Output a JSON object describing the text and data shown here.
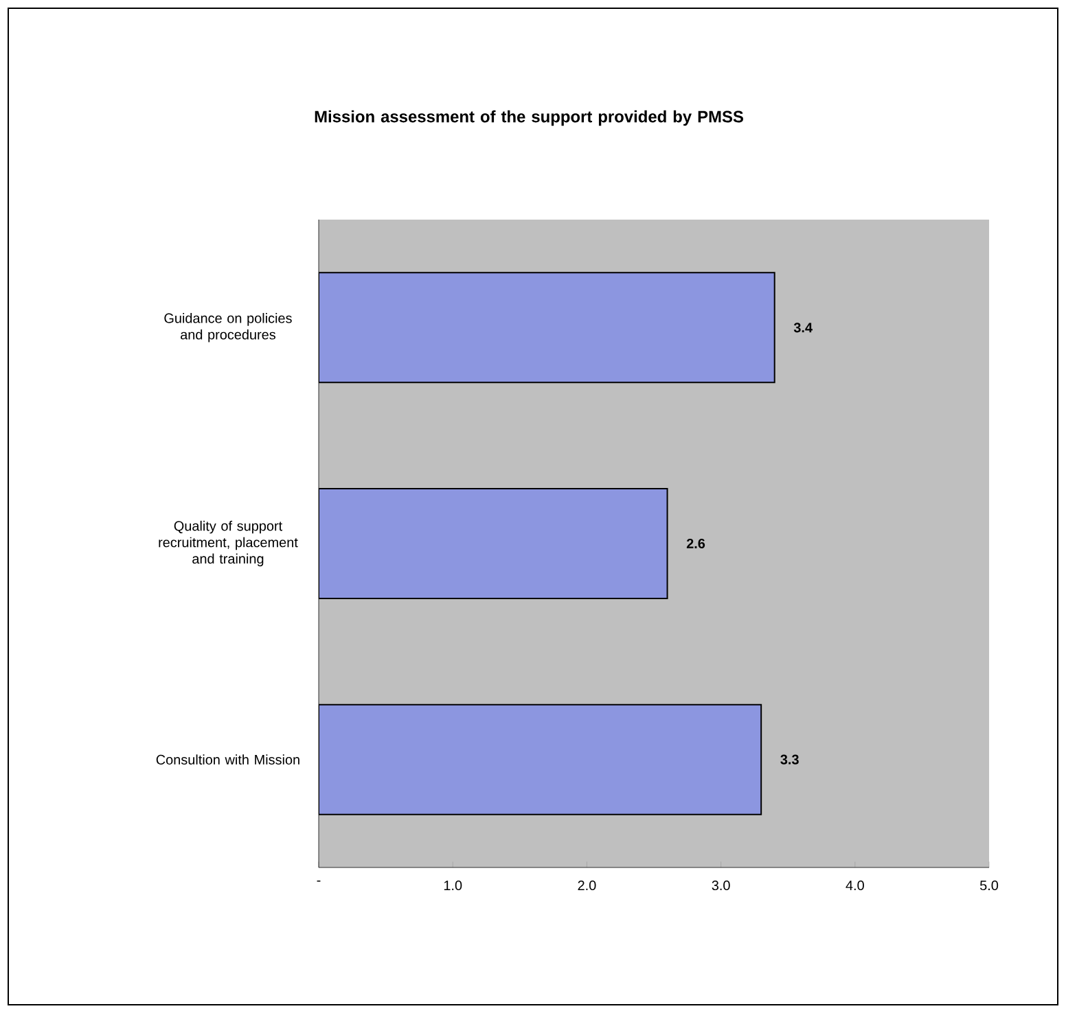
{
  "chart_data": {
    "type": "bar",
    "orientation": "horizontal",
    "title": "Mission assessment of the support provided by PMSS",
    "categories": [
      "Guidance on policies and procedures",
      "Quality of support recruitment, placement and training",
      "Consultion with Mission"
    ],
    "values": [
      3.4,
      2.6,
      3.3
    ],
    "color": "#8c96e0",
    "data_labels": true,
    "grid": false,
    "xlim": [
      0,
      5
    ],
    "xticks": [
      {
        "value": 0,
        "label": "-"
      },
      {
        "value": 1,
        "label": "1.0"
      },
      {
        "value": 2,
        "label": "2.0"
      },
      {
        "value": 3,
        "label": "3.0"
      },
      {
        "value": 4,
        "label": "4.0"
      },
      {
        "value": 5,
        "label": "5.0"
      }
    ]
  }
}
